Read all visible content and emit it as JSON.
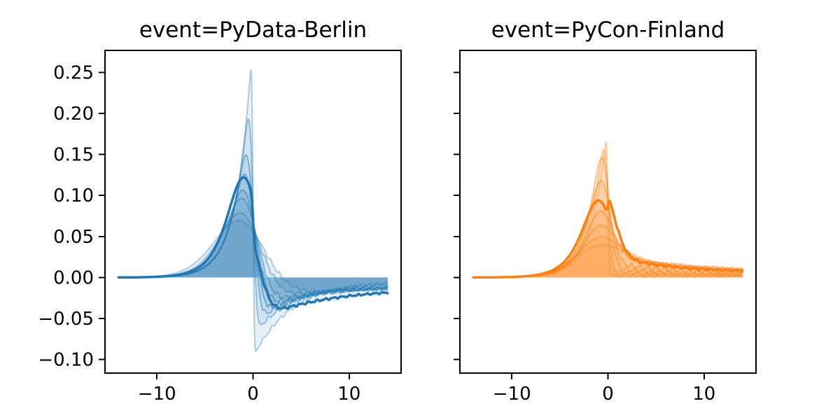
{
  "figure": {
    "background": "#ffffff",
    "kind": "matplotlib-two-subplot-line-figure"
  },
  "chart_data": {
    "type": "line",
    "title": "",
    "x_range": [
      -14,
      14
    ],
    "xlim": [
      -15.4,
      15.4
    ],
    "ylim": [
      -0.1166,
      0.2768
    ],
    "grid": false,
    "legend": "none",
    "rise_tau": 1.6,
    "x_ticks": [
      -10,
      0,
      10
    ],
    "x_tick_labels": [
      "−10",
      "0",
      "10"
    ],
    "y_ticks": [
      0.25,
      0.2,
      0.15,
      0.1,
      0.05,
      0.0,
      -0.05,
      -0.1
    ],
    "y_tick_labels": [
      "0.25",
      "0.20",
      "0.15",
      "0.10",
      "0.05",
      "0.00",
      "−0.05",
      "−0.10"
    ],
    "panels": [
      {
        "title": "event=PyData-Berlin",
        "color": "#1f77b4",
        "post_sign": -1,
        "show_y_tick_labels": true,
        "series": [
          {
            "sigma": 0.1,
            "sigma_post": 0.1,
            "peak": 0.255,
            "post_start": 0.097,
            "post_end": 0.004,
            "post_tau": 4.0,
            "line_alpha": 0.35,
            "line_width": 2,
            "fill_alpha": 0.1,
            "noise_amp": 0.0016
          },
          {
            "sigma": 0.3,
            "sigma_post": 0.3,
            "peak": 0.197,
            "post_start": 0.07,
            "post_end": 0.006,
            "post_tau": 4.2,
            "line_alpha": 0.4,
            "line_width": 2,
            "fill_alpha": 0.1,
            "noise_amp": 0.0018
          },
          {
            "sigma": 0.55,
            "sigma_post": 0.55,
            "peak": 0.155,
            "post_start": 0.058,
            "post_end": 0.008,
            "post_tau": 4.5,
            "line_alpha": 0.45,
            "line_width": 2,
            "fill_alpha": 0.1,
            "noise_amp": 0.002
          },
          {
            "sigma": 0.75,
            "sigma_post": 0.75,
            "peak": 0.132,
            "post_start": 0.05,
            "post_end": 0.01,
            "post_tau": 5.0,
            "line_alpha": 0.5,
            "line_width": 2,
            "fill_alpha": 0.1,
            "noise_amp": 0.002
          },
          {
            "sigma": 1.2,
            "sigma_post": 0.12,
            "peak": 0.122,
            "post_start": 0.053,
            "post_end": 0.013,
            "post_tau": 7.0,
            "line_alpha": 1.0,
            "line_width": 3.5,
            "fill_alpha": 0.1,
            "noise_amp": 0.0012
          },
          {
            "sigma": 1.05,
            "sigma_post": 1.05,
            "peak": 0.113,
            "post_start": 0.042,
            "post_end": 0.01,
            "post_tau": 5.5,
            "line_alpha": 0.5,
            "line_width": 2,
            "fill_alpha": 0.1,
            "noise_amp": 0.0022
          },
          {
            "sigma": 1.3,
            "sigma_post": 1.3,
            "peak": 0.103,
            "post_start": 0.036,
            "post_end": 0.011,
            "post_tau": 6.0,
            "line_alpha": 0.45,
            "line_width": 2,
            "fill_alpha": 0.1,
            "noise_amp": 0.0022
          },
          {
            "sigma": 1.8,
            "sigma_post": 1.8,
            "peak": 0.085,
            "post_start": 0.028,
            "post_end": 0.012,
            "post_tau": 7.0,
            "line_alpha": 0.4,
            "line_width": 2,
            "fill_alpha": 0.1,
            "noise_amp": 0.002
          },
          {
            "sigma": 2.3,
            "sigma_post": 2.3,
            "peak": 0.075,
            "post_start": 0.022,
            "post_end": 0.013,
            "post_tau": 8.0,
            "line_alpha": 0.35,
            "line_width": 2,
            "fill_alpha": 0.1,
            "noise_amp": 0.0018
          }
        ]
      },
      {
        "title": "event=PyCon-Finland",
        "color": "#ff7f0e",
        "post_sign": 1,
        "show_y_tick_labels": false,
        "series": [
          {
            "sigma": 0.1,
            "sigma_post": 0.1,
            "peak": 0.165,
            "post_start": 0.003,
            "post_end": 0.002,
            "post_tau": 3.5,
            "line_alpha": 0.35,
            "line_width": 2,
            "fill_alpha": 0.1,
            "noise_amp": 0.0016
          },
          {
            "sigma": 0.3,
            "sigma_post": 0.3,
            "peak": 0.155,
            "post_start": 0.008,
            "post_end": 0.003,
            "post_tau": 4.0,
            "line_alpha": 0.4,
            "line_width": 2,
            "fill_alpha": 0.1,
            "noise_amp": 0.0018
          },
          {
            "sigma": 0.55,
            "sigma_post": 0.55,
            "peak": 0.145,
            "post_start": 0.013,
            "post_end": 0.004,
            "post_tau": 4.5,
            "line_alpha": 0.45,
            "line_width": 2,
            "fill_alpha": 0.1,
            "noise_amp": 0.0022
          },
          {
            "sigma": 0.75,
            "sigma_post": 0.75,
            "peak": 0.115,
            "post_start": 0.02,
            "post_end": 0.005,
            "post_tau": 5.0,
            "line_alpha": 0.5,
            "line_width": 2,
            "fill_alpha": 0.1,
            "noise_amp": 0.0024
          },
          {
            "sigma": 1.2,
            "sigma_post": 0.12,
            "peak": 0.094,
            "post_start": 0.028,
            "post_end": 0.006,
            "post_tau": 6.0,
            "line_alpha": 1.0,
            "line_width": 3.5,
            "fill_alpha": 0.1,
            "noise_amp": 0.0012
          },
          {
            "sigma": 1.05,
            "sigma_post": 1.05,
            "peak": 0.075,
            "post_start": 0.03,
            "post_end": 0.006,
            "post_tau": 6.0,
            "line_alpha": 0.5,
            "line_width": 2,
            "fill_alpha": 0.1,
            "noise_amp": 0.0024
          },
          {
            "sigma": 1.3,
            "sigma_post": 1.3,
            "peak": 0.057,
            "post_start": 0.03,
            "post_end": 0.007,
            "post_tau": 6.5,
            "line_alpha": 0.45,
            "line_width": 2,
            "fill_alpha": 0.1,
            "noise_amp": 0.0022
          },
          {
            "sigma": 1.8,
            "sigma_post": 1.8,
            "peak": 0.042,
            "post_start": 0.028,
            "post_end": 0.007,
            "post_tau": 7.0,
            "line_alpha": 0.4,
            "line_width": 2,
            "fill_alpha": 0.1,
            "noise_amp": 0.002
          },
          {
            "sigma": 2.3,
            "sigma_post": 2.3,
            "peak": 0.032,
            "post_start": 0.025,
            "post_end": 0.008,
            "post_tau": 7.5,
            "line_alpha": 0.35,
            "line_width": 2,
            "fill_alpha": 0.1,
            "noise_amp": 0.0018
          }
        ]
      }
    ]
  }
}
